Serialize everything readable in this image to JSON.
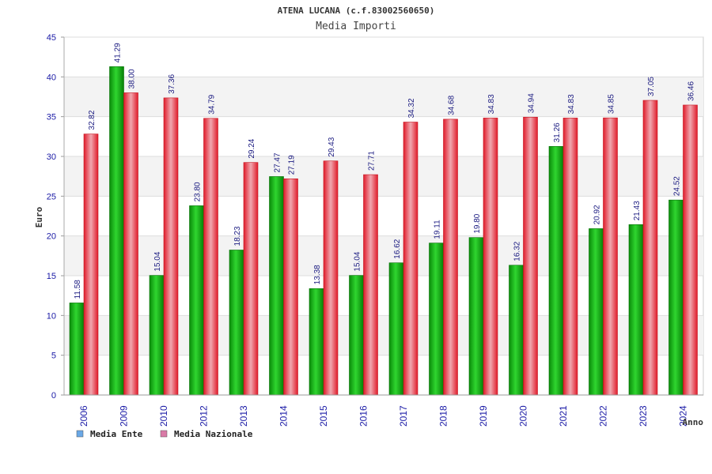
{
  "chart_data": {
    "type": "bar",
    "title": "ATENA LUCANA (c.f.83002560650)",
    "subtitle": "Media Importi",
    "xlabel": "Anno",
    "ylabel": "Euro",
    "ylim": [
      0,
      45
    ],
    "yticks": [
      0,
      5,
      10,
      15,
      20,
      25,
      30,
      35,
      40,
      45
    ],
    "grid": true,
    "legend_position": "bottom-left",
    "categories": [
      "2006",
      "2009",
      "2010",
      "2012",
      "2013",
      "2014",
      "2015",
      "2016",
      "2017",
      "2018",
      "2019",
      "2020",
      "2021",
      "2022",
      "2023",
      "2024"
    ],
    "series": [
      {
        "name": "Media Ente",
        "color": "#1fb11f",
        "legend_color": "#6aa8e6",
        "values": [
          11.58,
          41.29,
          15.04,
          23.8,
          18.23,
          27.47,
          13.38,
          15.04,
          16.62,
          19.11,
          19.8,
          16.32,
          31.26,
          20.92,
          21.43,
          24.52
        ],
        "labels": [
          "11.58",
          "41.29",
          "15.04",
          "23.80",
          "18.23",
          "27.47",
          "13.38",
          "15.04",
          "16.62",
          "19.11",
          "19.80",
          "16.32",
          "31.26",
          "20.92",
          "21.43",
          "24.52"
        ]
      },
      {
        "name": "Media Nazionale",
        "color": "#e8323c",
        "legend_color": "#d97aa6",
        "values": [
          32.82,
          38.0,
          37.36,
          34.79,
          29.24,
          27.19,
          29.43,
          27.71,
          34.32,
          34.68,
          34.83,
          34.94,
          34.83,
          34.85,
          37.05,
          36.46
        ],
        "labels": [
          "32.82",
          "38.00",
          "37.36",
          "34.79",
          "29.24",
          "27.19",
          "29.43",
          "27.71",
          "34.32",
          "34.68",
          "34.83",
          "34.94",
          "34.83",
          "34.85",
          "37.05",
          "36.46"
        ]
      }
    ]
  }
}
